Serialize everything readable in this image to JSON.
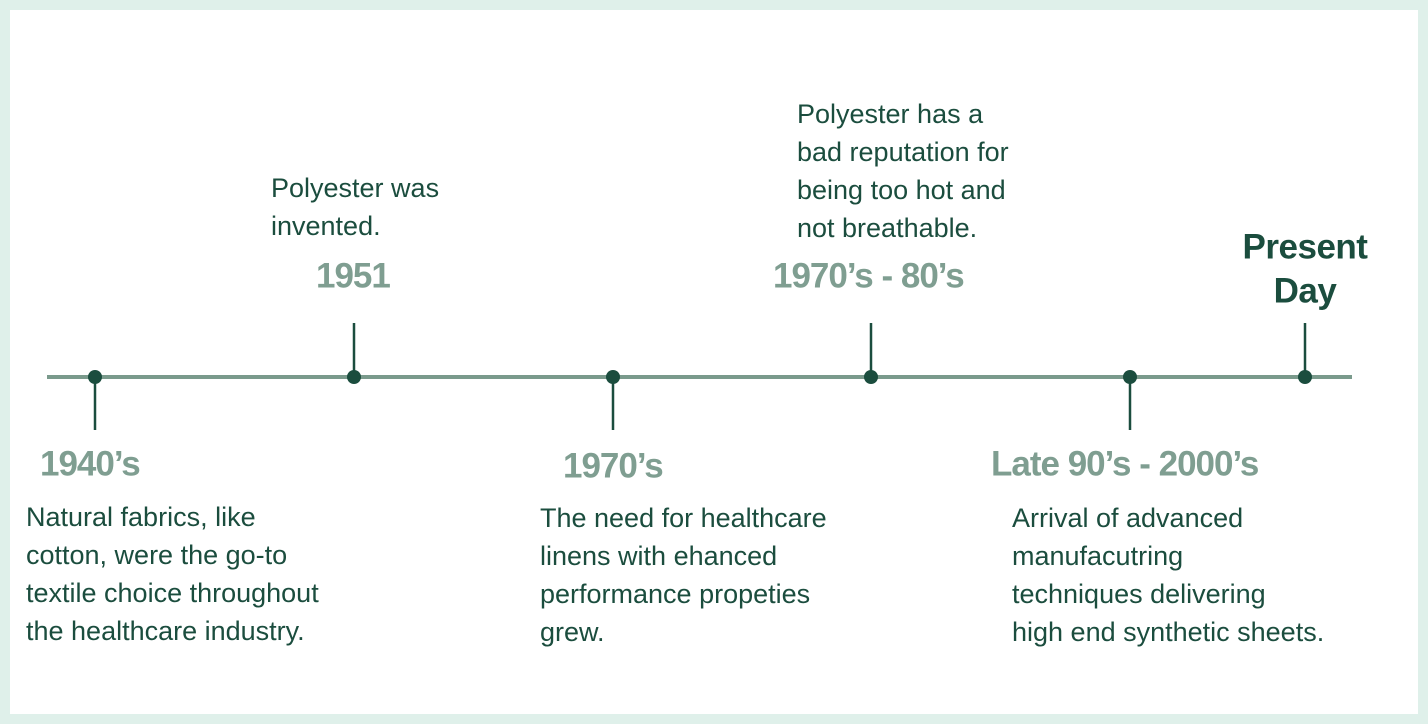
{
  "events": [
    {
      "label": [
        "1940’s"
      ],
      "description": [
        "Natural fabrics, like",
        "cotton, were the go-to",
        "textile choice throughout",
        "the healthcare industry."
      ]
    },
    {
      "label": [
        "1951"
      ],
      "description": [
        "Polyester was",
        "invented."
      ]
    },
    {
      "label": [
        "1970’s"
      ],
      "description": [
        "The need for healthcare",
        "linens with ehanced",
        "performance propeties",
        "grew."
      ]
    },
    {
      "label": [
        "1970’s - 80’s"
      ],
      "description": [
        "Polyester has a",
        "bad reputation for",
        "being too hot and",
        "not breathable."
      ]
    },
    {
      "label": [
        "Late 90’s - 2000’s"
      ],
      "description": [
        "Arrival of advanced",
        "manufacutring",
        "techniques delivering",
        "high end synthetic sheets."
      ]
    },
    {
      "label": [
        "Present",
        "Day"
      ],
      "description": []
    }
  ]
}
